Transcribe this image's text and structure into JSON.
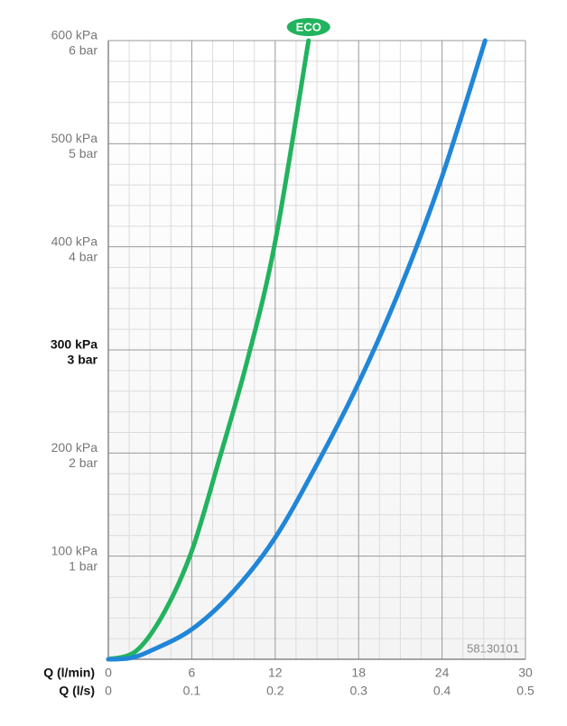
{
  "chart_data": {
    "type": "line",
    "x_title": "Q (l/min)",
    "x2_title": "Q (l/s)",
    "xlim": [
      0,
      30
    ],
    "xticks": [
      0,
      6,
      12,
      18,
      24,
      30
    ],
    "x2lim": [
      0,
      0.5
    ],
    "x2ticks": [
      0,
      0.1,
      0.2,
      0.3,
      0.4,
      0.5
    ],
    "ylim": [
      0,
      600
    ],
    "yticks": [
      {
        "value": 100,
        "label": "100 kPa"
      },
      {
        "value": 200,
        "label": "200 kPa"
      },
      {
        "value": 300,
        "label": "300 kPa"
      },
      {
        "value": 400,
        "label": "400 kPa"
      },
      {
        "value": 500,
        "label": "500 kPa"
      },
      {
        "value": 600,
        "label": "600 kPa"
      }
    ],
    "y2lim": [
      0,
      6
    ],
    "y2ticks": [
      {
        "value": 1,
        "label": "1 bar"
      },
      {
        "value": 2,
        "label": "2 bar"
      },
      {
        "value": 3,
        "label": "3 bar"
      },
      {
        "value": 4,
        "label": "4 bar"
      },
      {
        "value": 5,
        "label": "5 bar"
      },
      {
        "value": 6,
        "label": "6 bar"
      }
    ],
    "highlight_ytick": 300,
    "grid": true,
    "minor_grid": true,
    "annotation": "58130101",
    "series": [
      {
        "name": "ECO",
        "color": "#22b35e",
        "x": [
          0,
          2,
          4,
          6,
          8,
          10,
          12,
          14.4
        ],
        "values": [
          0,
          8,
          45,
          105,
          195,
          290,
          405,
          600
        ]
      },
      {
        "color": "#2186d8",
        "x": [
          0,
          1.5,
          3,
          6,
          9,
          12,
          15,
          18,
          21,
          24,
          27.1
        ],
        "values": [
          0,
          1,
          8,
          29,
          66,
          118,
          189,
          268,
          360,
          468,
          600
        ]
      }
    ]
  }
}
